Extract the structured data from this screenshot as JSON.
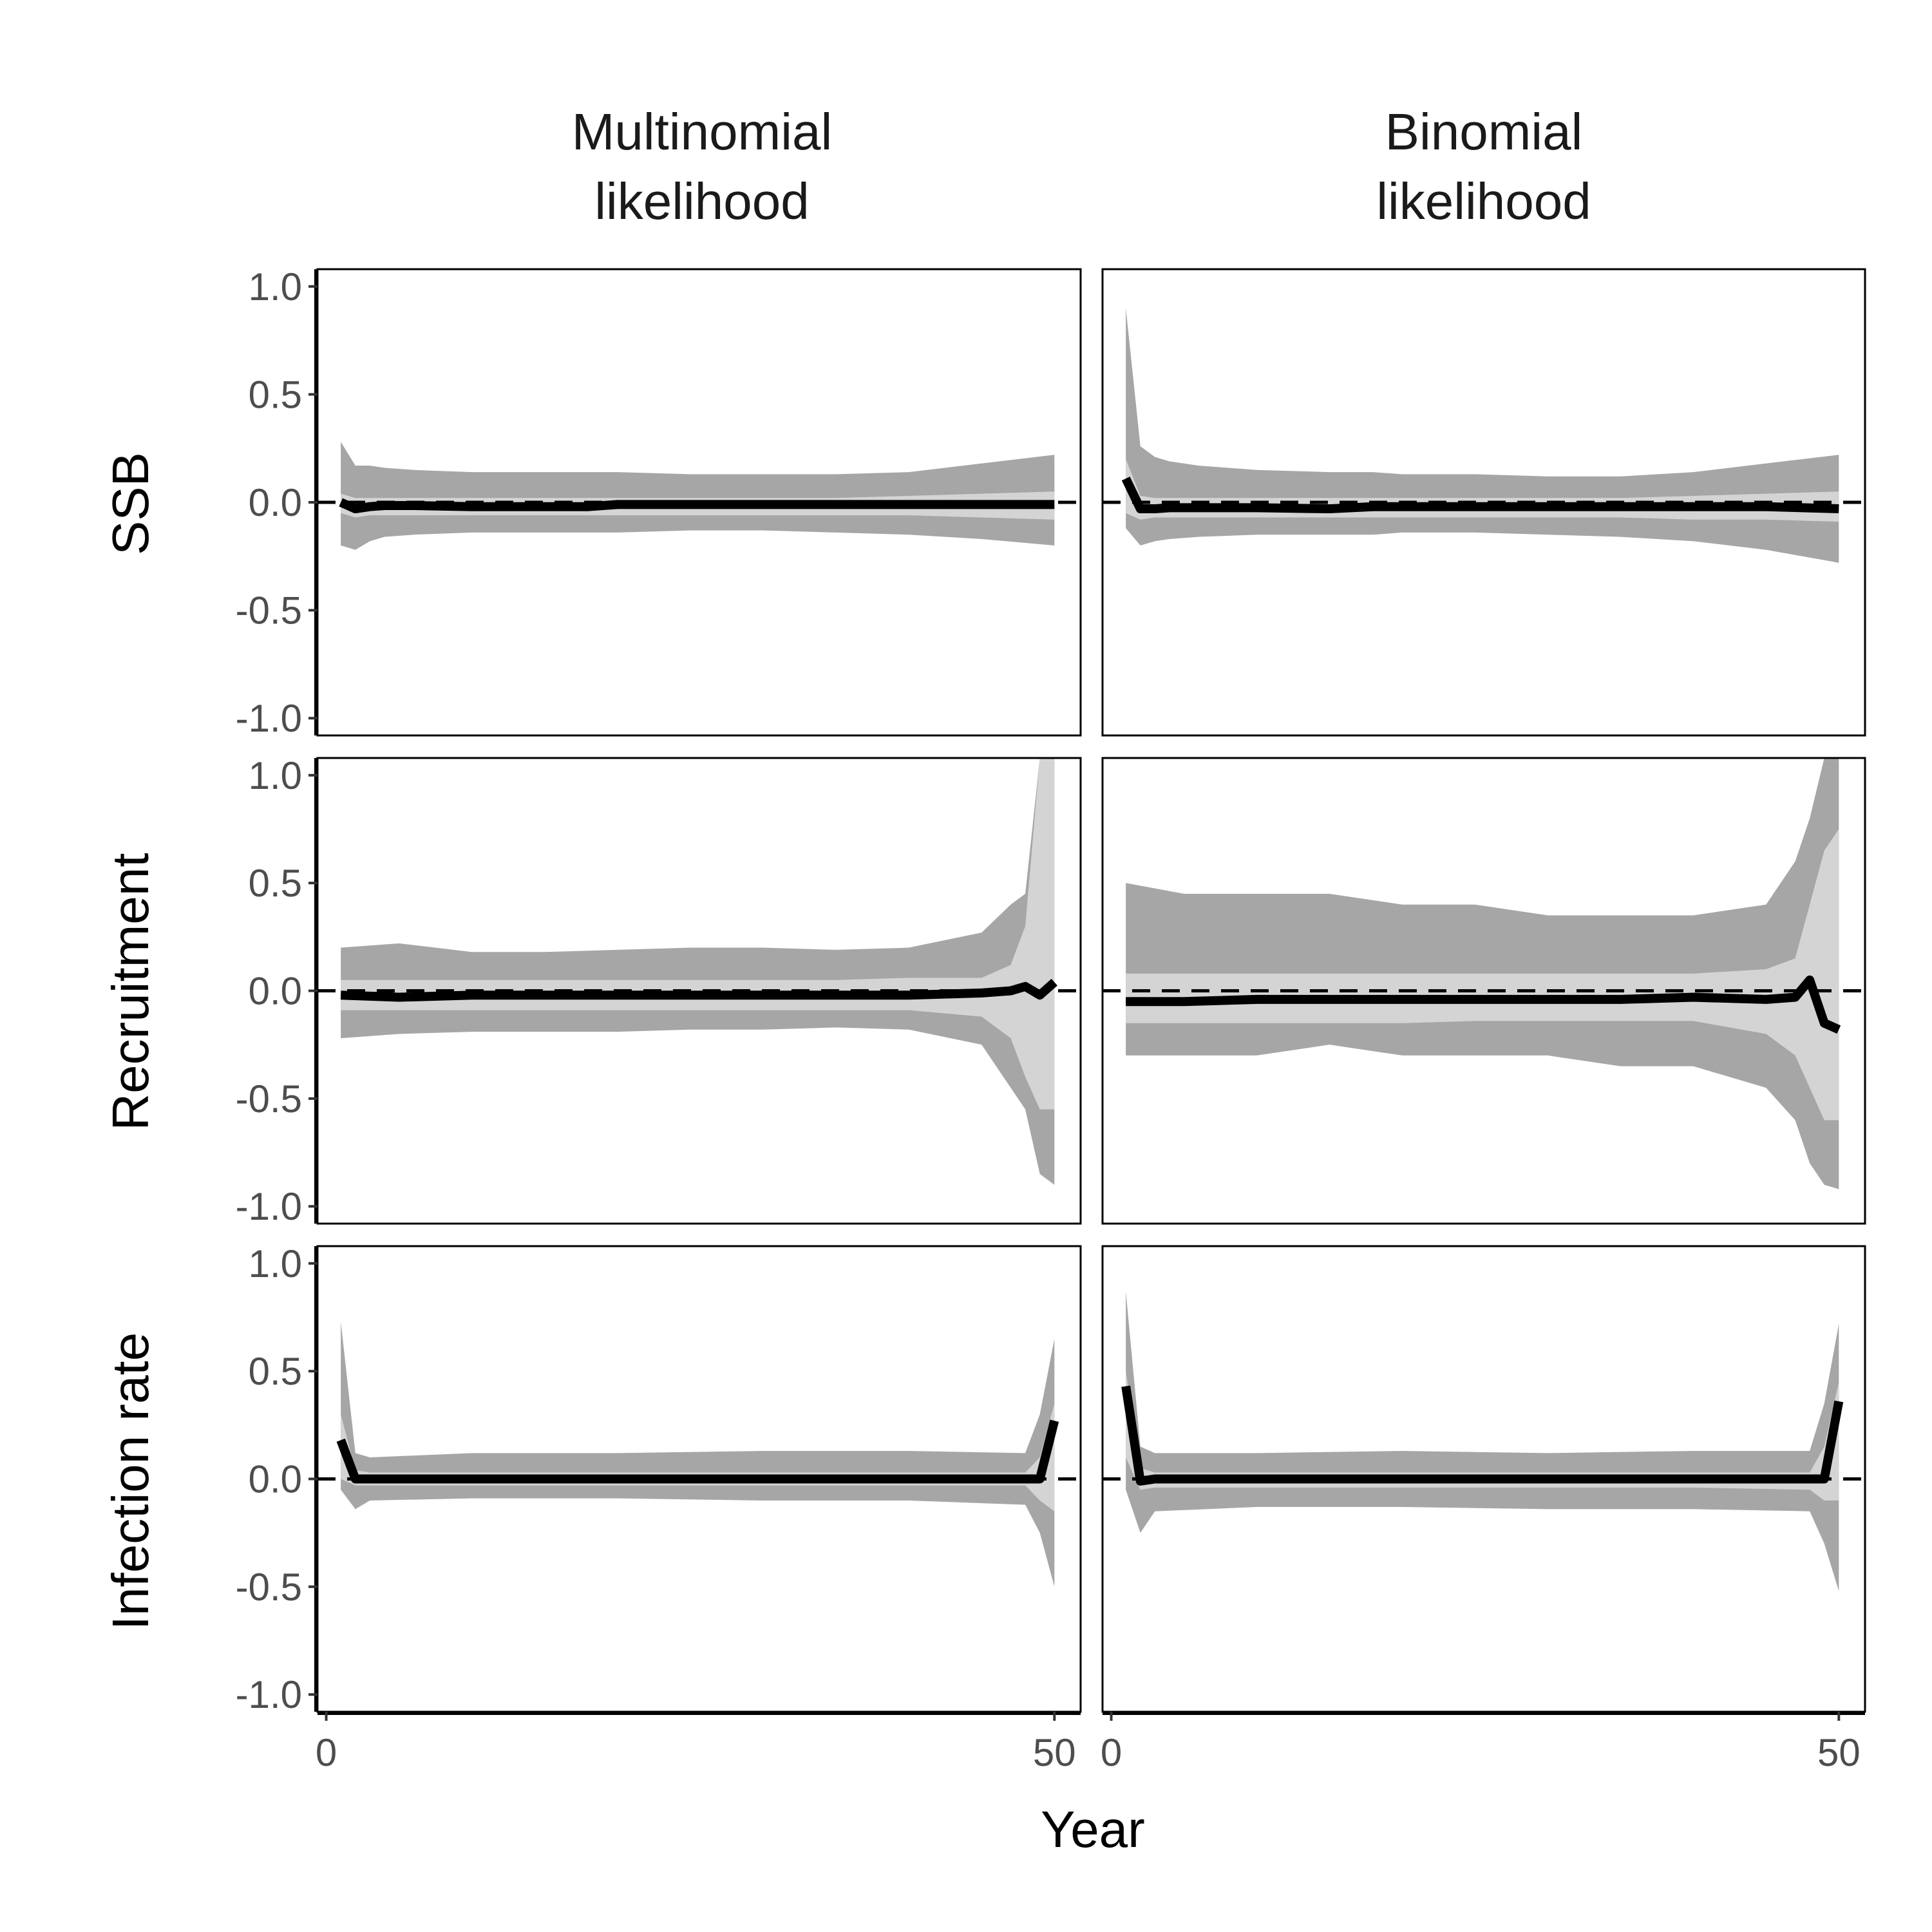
{
  "chart_data": {
    "type": "line",
    "columns": [
      {
        "line1": "Multinomial",
        "line2": "likelihood"
      },
      {
        "line1": "Binomial",
        "line2": "likelihood"
      }
    ],
    "rows": [
      "SSB",
      "Recruitment",
      "Infection rate"
    ],
    "xlabel": "Year",
    "xlim": [
      -0.6,
      51.8
    ],
    "ylim": [
      -1.08,
      1.08
    ],
    "x_ticks": [
      0,
      50
    ],
    "y_ticks": [
      1.0,
      0.5,
      0.0,
      -0.5,
      -1.0
    ],
    "y_tick_labels": [
      "1.0",
      "0.5",
      "0.0",
      "-0.5",
      "-1.0"
    ],
    "x_tick_labels": [
      "0",
      "50"
    ],
    "reference_line": {
      "y": 0,
      "style": "dashed"
    },
    "colors": {
      "outer_band": "#a6a6a6",
      "inner_band": "#d4d4d4",
      "median": "#000000"
    },
    "panels": [
      {
        "row": "SSB",
        "column": "Multinomial likelihood",
        "x": [
          1,
          50
        ],
        "median": {
          "x": [
            1,
            2,
            3,
            4,
            6,
            10,
            15,
            18,
            20,
            25,
            30,
            35,
            40,
            45,
            50
          ],
          "y": [
            0.0,
            -0.03,
            -0.02,
            -0.015,
            -0.015,
            -0.02,
            -0.02,
            -0.02,
            -0.01,
            -0.01,
            -0.01,
            -0.01,
            -0.01,
            -0.01,
            -0.01
          ]
        },
        "inner_band": {
          "upper": [
            0.04,
            0.02,
            0.02,
            0.02,
            0.02,
            0.02,
            0.02,
            0.02,
            0.02,
            0.02,
            0.02,
            0.02,
            0.03,
            0.04,
            0.05
          ],
          "lower": [
            -0.05,
            -0.07,
            -0.06,
            -0.06,
            -0.06,
            -0.06,
            -0.06,
            -0.06,
            -0.06,
            -0.06,
            -0.06,
            -0.06,
            -0.06,
            -0.07,
            -0.08
          ]
        },
        "outer_band": {
          "upper": [
            0.28,
            0.17,
            0.17,
            0.16,
            0.15,
            0.14,
            0.14,
            0.14,
            0.14,
            0.13,
            0.13,
            0.13,
            0.14,
            0.18,
            0.22
          ],
          "lower": [
            -0.2,
            -0.22,
            -0.18,
            -0.16,
            -0.15,
            -0.14,
            -0.14,
            -0.14,
            -0.14,
            -0.13,
            -0.13,
            -0.14,
            -0.15,
            -0.17,
            -0.2
          ]
        }
      },
      {
        "row": "SSB",
        "column": "Binomial likelihood",
        "x": [
          1,
          50
        ],
        "median": {
          "x": [
            1,
            2,
            3,
            4,
            6,
            10,
            15,
            18,
            20,
            25,
            30,
            35,
            40,
            45,
            50
          ],
          "y": [
            0.11,
            -0.03,
            -0.03,
            -0.025,
            -0.025,
            -0.025,
            -0.03,
            -0.02,
            -0.02,
            -0.02,
            -0.02,
            -0.02,
            -0.02,
            -0.02,
            -0.03
          ]
        },
        "inner_band": {
          "upper": [
            0.2,
            0.03,
            0.02,
            0.02,
            0.02,
            0.02,
            0.02,
            0.02,
            0.02,
            0.02,
            0.02,
            0.02,
            0.03,
            0.04,
            0.05
          ],
          "lower": [
            -0.05,
            -0.08,
            -0.07,
            -0.07,
            -0.07,
            -0.07,
            -0.07,
            -0.07,
            -0.07,
            -0.07,
            -0.07,
            -0.07,
            -0.08,
            -0.08,
            -0.09
          ]
        },
        "outer_band": {
          "upper": [
            0.9,
            0.26,
            0.21,
            0.19,
            0.17,
            0.15,
            0.14,
            0.14,
            0.13,
            0.13,
            0.12,
            0.12,
            0.14,
            0.18,
            0.22
          ],
          "lower": [
            -0.12,
            -0.2,
            -0.18,
            -0.17,
            -0.16,
            -0.15,
            -0.15,
            -0.15,
            -0.14,
            -0.14,
            -0.15,
            -0.16,
            -0.18,
            -0.22,
            -0.28
          ]
        }
      },
      {
        "row": "Recruitment",
        "column": "Multinomial likelihood",
        "x": [
          1,
          50
        ],
        "median": {
          "x": [
            1,
            5,
            10,
            15,
            20,
            25,
            30,
            35,
            40,
            45,
            47,
            48,
            49,
            50
          ],
          "y": [
            -0.02,
            -0.03,
            -0.02,
            -0.02,
            -0.02,
            -0.02,
            -0.02,
            -0.02,
            -0.02,
            -0.01,
            0.0,
            0.02,
            -0.02,
            0.04
          ]
        },
        "inner_band": {
          "upper": [
            0.05,
            0.05,
            0.05,
            0.05,
            0.05,
            0.05,
            0.05,
            0.05,
            0.06,
            0.06,
            0.12,
            0.3,
            1.08,
            1.08
          ],
          "lower": [
            -0.09,
            -0.09,
            -0.09,
            -0.09,
            -0.09,
            -0.09,
            -0.09,
            -0.09,
            -0.09,
            -0.12,
            -0.22,
            -0.4,
            -0.55,
            -0.55
          ]
        },
        "outer_band": {
          "upper": [
            0.2,
            0.22,
            0.18,
            0.18,
            0.19,
            0.2,
            0.2,
            0.19,
            0.2,
            0.27,
            0.4,
            0.45,
            1.08,
            1.08
          ],
          "lower": [
            -0.22,
            -0.2,
            -0.19,
            -0.19,
            -0.19,
            -0.18,
            -0.18,
            -0.17,
            -0.18,
            -0.25,
            -0.45,
            -0.55,
            -0.85,
            -0.9
          ]
        }
      },
      {
        "row": "Recruitment",
        "column": "Binomial likelihood",
        "x": [
          1,
          50
        ],
        "median": {
          "x": [
            1,
            5,
            10,
            15,
            20,
            25,
            30,
            35,
            40,
            45,
            47,
            48,
            49,
            50
          ],
          "y": [
            -0.05,
            -0.05,
            -0.04,
            -0.04,
            -0.04,
            -0.04,
            -0.04,
            -0.04,
            -0.03,
            -0.04,
            -0.03,
            0.05,
            -0.15,
            -0.18
          ]
        },
        "inner_band": {
          "upper": [
            0.08,
            0.08,
            0.08,
            0.08,
            0.08,
            0.08,
            0.08,
            0.08,
            0.08,
            0.1,
            0.15,
            0.4,
            0.65,
            0.75
          ]
        },
        "inner_band_lower": [
          -0.15,
          -0.15,
          -0.15,
          -0.15,
          -0.15,
          -0.14,
          -0.14,
          -0.14,
          -0.14,
          -0.2,
          -0.3,
          -0.45,
          -0.6,
          -0.6
        ],
        "outer_band": {
          "upper": [
            0.5,
            0.45,
            0.45,
            0.45,
            0.4,
            0.4,
            0.35,
            0.35,
            0.35,
            0.4,
            0.6,
            0.8,
            1.08,
            1.08
          ],
          "lower": [
            -0.3,
            -0.3,
            -0.3,
            -0.25,
            -0.3,
            -0.3,
            -0.3,
            -0.35,
            -0.35,
            -0.45,
            -0.6,
            -0.8,
            -0.9,
            -0.92
          ]
        }
      },
      {
        "row": "Infection rate",
        "column": "Multinomial likelihood",
        "x": [
          1,
          50
        ],
        "median": {
          "x": [
            1,
            2,
            3,
            10,
            20,
            30,
            40,
            48,
            49,
            50
          ],
          "y": [
            0.18,
            0.0,
            0.0,
            0.0,
            0.0,
            0.0,
            0.0,
            0.0,
            0.0,
            0.27
          ]
        },
        "inner_band": {
          "upper": [
            0.3,
            0.04,
            0.03,
            0.03,
            0.03,
            0.03,
            0.03,
            0.03,
            0.1,
            0.35
          ],
          "lower": [
            0.0,
            -0.03,
            -0.03,
            -0.03,
            -0.03,
            -0.03,
            -0.03,
            -0.03,
            -0.1,
            -0.15
          ]
        },
        "outer_band": {
          "upper": [
            0.73,
            0.12,
            0.1,
            0.12,
            0.12,
            0.13,
            0.13,
            0.12,
            0.3,
            0.65
          ],
          "lower": [
            -0.05,
            -0.14,
            -0.1,
            -0.09,
            -0.09,
            -0.1,
            -0.1,
            -0.12,
            -0.25,
            -0.5
          ]
        }
      },
      {
        "row": "Infection rate",
        "column": "Binomial likelihood",
        "x": [
          1,
          50
        ],
        "median": {
          "x": [
            1,
            2,
            3,
            10,
            20,
            30,
            40,
            48,
            49,
            50
          ],
          "y": [
            0.43,
            -0.01,
            0.0,
            0.0,
            0.0,
            0.0,
            0.0,
            0.0,
            0.0,
            0.36
          ]
        },
        "inner_band": {
          "upper": [
            0.5,
            0.05,
            0.03,
            0.03,
            0.03,
            0.03,
            0.03,
            0.03,
            0.15,
            0.45
          ],
          "lower": [
            0.1,
            -0.05,
            -0.04,
            -0.04,
            -0.04,
            -0.04,
            -0.04,
            -0.05,
            -0.1,
            -0.1
          ]
        },
        "outer_band": {
          "upper": [
            0.87,
            0.15,
            0.12,
            0.12,
            0.13,
            0.12,
            0.13,
            0.13,
            0.35,
            0.72
          ],
          "lower": [
            -0.05,
            -0.25,
            -0.15,
            -0.13,
            -0.13,
            -0.14,
            -0.14,
            -0.15,
            -0.3,
            -0.52
          ]
        }
      }
    ]
  }
}
